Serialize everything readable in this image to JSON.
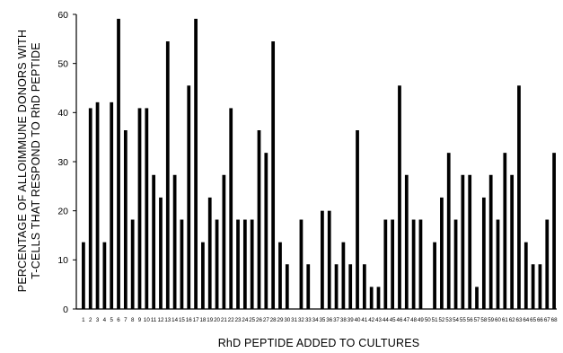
{
  "chart_data": {
    "type": "bar",
    "title": "",
    "xlabel": "RhD PEPTIDE ADDED TO CULTURES",
    "ylabel_lines": [
      "PERCENTAGE OF ALLOIMMUNE DONORS WITH",
      "T-CELLS THAT RESPOND TO RhD PEPTIDE"
    ],
    "ylim": [
      0,
      60
    ],
    "yticks": [
      0,
      10,
      20,
      30,
      40,
      50,
      60
    ],
    "grid": false,
    "legend": "none",
    "bar_color": "#000000",
    "categories": [
      "1",
      "2",
      "3",
      "4",
      "5",
      "6",
      "7",
      "8",
      "9",
      "10",
      "11",
      "12",
      "13",
      "14",
      "15",
      "16",
      "17",
      "18",
      "19",
      "20",
      "21",
      "22",
      "23",
      "24",
      "25",
      "26",
      "27",
      "28",
      "29",
      "30",
      "31",
      "32",
      "33",
      "34",
      "35",
      "36",
      "37",
      "38",
      "39",
      "40",
      "41",
      "42",
      "43",
      "44",
      "45",
      "46",
      "47",
      "48",
      "49",
      "50",
      "51",
      "52",
      "53",
      "54",
      "55",
      "56",
      "57",
      "58",
      "59",
      "60",
      "61",
      "62",
      "63",
      "64",
      "65",
      "66",
      "67",
      "68"
    ],
    "values": [
      13.6,
      40.9,
      42.1,
      13.6,
      42.1,
      59.1,
      36.4,
      18.2,
      40.9,
      40.9,
      27.3,
      22.7,
      54.5,
      27.3,
      18.2,
      45.5,
      59.1,
      13.6,
      22.7,
      18.2,
      27.3,
      40.9,
      18.2,
      18.2,
      18.2,
      36.4,
      31.8,
      54.5,
      13.6,
      9.1,
      0,
      18.2,
      9.1,
      0,
      20.0,
      20.0,
      9.1,
      13.6,
      9.1,
      36.4,
      9.1,
      4.5,
      4.5,
      18.2,
      18.2,
      45.5,
      27.3,
      18.2,
      18.2,
      0,
      13.6,
      22.7,
      31.8,
      18.2,
      27.3,
      27.3,
      4.5,
      22.7,
      27.3,
      18.2,
      31.8,
      27.3,
      45.5,
      13.6,
      9.1,
      9.1,
      18.2,
      31.8
    ]
  }
}
